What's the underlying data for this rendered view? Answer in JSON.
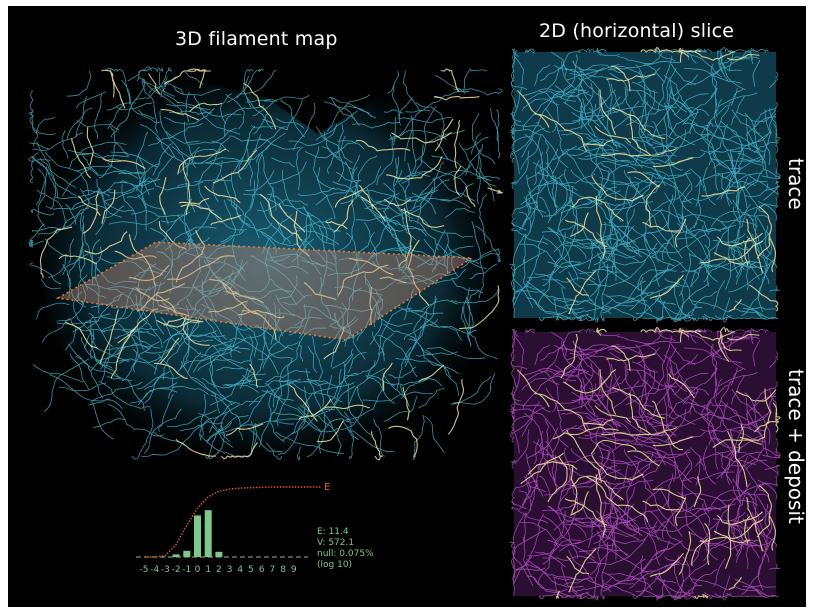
{
  "titles": {
    "map_3d": "3D filament map",
    "slice_2d": "2D (horizontal) slice"
  },
  "slice_labels": {
    "trace": "trace",
    "trace_deposit": "trace + deposit"
  },
  "colors": {
    "background": "#000000",
    "filament_cyan": "#4fc3d9",
    "filament_highlight": "#f4e6a0",
    "deposit_magenta": "#c65bd6",
    "slice_plane": "#e07a3a",
    "histogram": "#7dc98c",
    "curve": "#e05a2a"
  },
  "inset": {
    "curve_label": "E",
    "stats": [
      "E: 11.4",
      "V: 572.1",
      "null: 0.075%",
      "(log 10)"
    ],
    "ticks": [
      "-5",
      "-4",
      "-3",
      "-2",
      "-1",
      "0",
      "1",
      "2",
      "3",
      "4",
      "5",
      "6",
      "7",
      "8",
      "9"
    ]
  },
  "chart_data": {
    "type": "bar",
    "categories": [
      "-5",
      "-4",
      "-3",
      "-2",
      "-1",
      "0",
      "1",
      "2",
      "3",
      "4",
      "5",
      "6",
      "7",
      "8",
      "9"
    ],
    "series": [
      {
        "values": [
          0,
          0,
          0,
          0.05,
          0.12,
          0.8,
          0.9,
          0.1,
          0,
          0,
          0,
          0,
          0,
          0,
          0
        ]
      }
    ],
    "curve": [
      0,
      0,
      0.02,
      0.18,
      0.45,
      0.7,
      0.86,
      0.94,
      0.97,
      0.985,
      0.99,
      0.995,
      1,
      1,
      1
    ]
  }
}
